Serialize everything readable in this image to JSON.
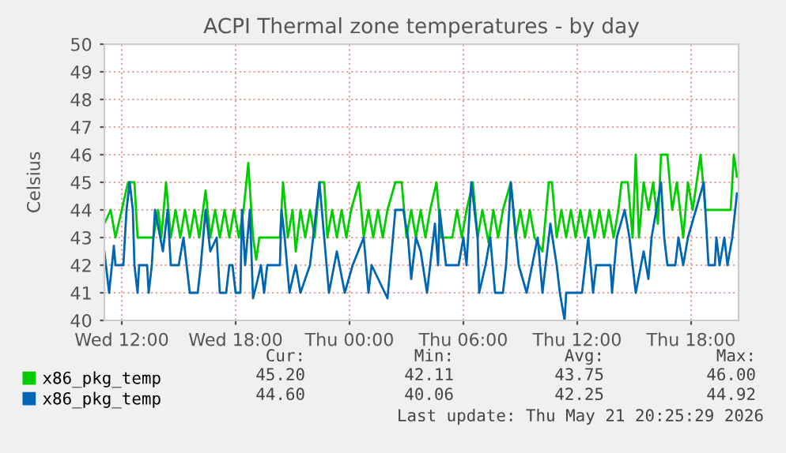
{
  "chart_data": {
    "type": "line",
    "title": "ACPI Thermal zone temperatures - by day",
    "ylabel": "Celsius",
    "xlim": [
      "2026-05-20T11:05",
      "2026-05-21T20:30"
    ],
    "xticks": [
      {
        "value": "2026-05-20T12:00",
        "label": "Wed 12:00"
      },
      {
        "value": "2026-05-20T18:00",
        "label": "Wed 18:00"
      },
      {
        "value": "2026-05-21T00:00",
        "label": "Thu 00:00"
      },
      {
        "value": "2026-05-21T06:00",
        "label": "Thu 06:00"
      },
      {
        "value": "2026-05-21T12:00",
        "label": "Thu 12:00"
      },
      {
        "value": "2026-05-21T18:00",
        "label": "Thu 18:00"
      }
    ],
    "ylim": [
      40,
      50
    ],
    "yticks": [
      40,
      41,
      42,
      43,
      44,
      45,
      46,
      47,
      48,
      49,
      50
    ],
    "grid": true,
    "legend": "bottom",
    "marker": "none",
    "line_style": "solid",
    "series": [
      {
        "name": "x86_pkg_temp",
        "color": "#00cc00",
        "x": [
          "2026-05-20T11:05",
          "2026-05-20T11:25",
          "2026-05-20T11:40",
          "2026-05-20T12:00",
          "2026-05-20T12:20",
          "2026-05-20T12:40",
          "2026-05-20T12:50",
          "2026-05-20T13:40",
          "2026-05-20T13:55",
          "2026-05-20T14:05",
          "2026-05-20T14:20",
          "2026-05-20T14:35",
          "2026-05-20T14:50",
          "2026-05-20T15:05",
          "2026-05-20T15:20",
          "2026-05-20T15:35",
          "2026-05-20T15:50",
          "2026-05-20T16:05",
          "2026-05-20T16:25",
          "2026-05-20T16:40",
          "2026-05-20T16:55",
          "2026-05-20T17:10",
          "2026-05-20T17:25",
          "2026-05-20T17:40",
          "2026-05-20T17:55",
          "2026-05-20T18:10",
          "2026-05-20T18:25",
          "2026-05-20T18:40",
          "2026-05-20T18:55",
          "2026-05-20T19:05",
          "2026-05-20T19:15",
          "2026-05-20T20:20",
          "2026-05-20T20:30",
          "2026-05-20T20:45",
          "2026-05-20T21:00",
          "2026-05-20T21:10",
          "2026-05-20T21:25",
          "2026-05-20T21:40",
          "2026-05-20T21:55",
          "2026-05-20T22:10",
          "2026-05-20T22:25",
          "2026-05-20T22:40",
          "2026-05-20T22:50",
          "2026-05-20T23:05",
          "2026-05-20T23:20",
          "2026-05-20T23:35",
          "2026-05-20T23:50",
          "2026-05-21T00:05",
          "2026-05-21T00:30",
          "2026-05-21T00:45",
          "2026-05-21T01:00",
          "2026-05-21T01:15",
          "2026-05-21T01:30",
          "2026-05-21T01:45",
          "2026-05-21T02:00",
          "2026-05-21T02:25",
          "2026-05-21T02:45",
          "2026-05-21T03:00",
          "2026-05-21T03:15",
          "2026-05-21T03:30",
          "2026-05-21T03:45",
          "2026-05-21T04:00",
          "2026-05-21T04:15",
          "2026-05-21T04:35",
          "2026-05-21T04:50",
          "2026-05-21T05:25",
          "2026-05-21T05:40",
          "2026-05-21T05:55",
          "2026-05-21T06:10",
          "2026-05-21T06:30",
          "2026-05-21T06:45",
          "2026-05-21T07:00",
          "2026-05-21T07:20",
          "2026-05-21T07:35",
          "2026-05-21T07:50",
          "2026-05-21T08:05",
          "2026-05-21T08:30",
          "2026-05-21T08:45",
          "2026-05-21T09:00",
          "2026-05-21T09:15",
          "2026-05-21T09:30",
          "2026-05-21T09:45",
          "2026-05-21T10:10",
          "2026-05-21T10:30",
          "2026-05-21T10:40",
          "2026-05-21T10:55",
          "2026-05-21T11:10",
          "2026-05-21T11:25",
          "2026-05-21T11:40",
          "2026-05-21T11:55",
          "2026-05-21T12:10",
          "2026-05-21T12:25",
          "2026-05-21T12:40",
          "2026-05-21T12:55",
          "2026-05-21T13:10",
          "2026-05-21T13:25",
          "2026-05-21T13:40",
          "2026-05-21T13:55",
          "2026-05-21T14:10",
          "2026-05-21T14:20",
          "2026-05-21T14:40",
          "2026-05-21T14:55",
          "2026-05-21T15:05",
          "2026-05-21T15:15",
          "2026-05-21T15:30",
          "2026-05-21T15:45",
          "2026-05-21T16:00",
          "2026-05-21T16:15",
          "2026-05-21T16:25",
          "2026-05-21T16:45",
          "2026-05-21T17:00",
          "2026-05-21T17:15",
          "2026-05-21T17:35",
          "2026-05-21T17:50",
          "2026-05-21T18:05",
          "2026-05-21T18:30",
          "2026-05-21T18:45",
          "2026-05-21T20:05",
          "2026-05-21T20:15",
          "2026-05-21T20:25"
        ],
        "values": [
          43.5,
          44,
          43,
          44,
          45,
          45,
          43,
          43,
          44,
          43,
          45,
          43,
          44,
          43,
          44,
          43,
          44,
          43,
          44.7,
          43,
          44,
          43,
          44,
          43,
          44,
          43,
          44,
          45.7,
          43,
          42.2,
          43,
          43,
          45,
          43,
          44,
          42.5,
          44,
          43,
          44,
          43,
          45,
          45,
          43,
          44,
          43,
          44,
          43,
          44,
          45,
          43,
          44,
          43,
          44,
          43,
          44,
          45,
          45,
          43,
          44,
          43,
          44,
          43,
          44,
          45,
          43,
          43,
          44,
          43,
          44,
          45,
          43,
          44,
          42.8,
          44,
          43,
          44,
          45,
          43,
          44,
          43,
          44,
          43,
          42.5,
          45,
          45,
          43,
          44,
          43,
          44,
          43,
          44,
          43,
          44,
          43,
          44,
          43,
          44,
          43,
          44,
          45,
          45,
          43,
          46,
          43,
          45,
          44,
          45,
          43.5,
          46,
          46,
          44,
          45,
          43,
          45,
          44,
          46,
          44,
          44,
          46,
          45.2
        ]
      },
      {
        "name": "x86_pkg_temp",
        "color": "#0066b3",
        "x": [
          "2026-05-20T11:05",
          "2026-05-20T11:20",
          "2026-05-20T11:35",
          "2026-05-20T11:40",
          "2026-05-20T12:05",
          "2026-05-20T12:15",
          "2026-05-20T12:25",
          "2026-05-20T12:35",
          "2026-05-20T12:40",
          "2026-05-20T12:50",
          "2026-05-20T12:55",
          "2026-05-20T13:20",
          "2026-05-20T13:25",
          "2026-05-20T13:35",
          "2026-05-20T13:45",
          "2026-05-20T14:10",
          "2026-05-20T14:25",
          "2026-05-20T14:35",
          "2026-05-20T15:00",
          "2026-05-20T15:15",
          "2026-05-20T15:25",
          "2026-05-20T15:35",
          "2026-05-20T16:00",
          "2026-05-20T16:10",
          "2026-05-20T16:25",
          "2026-05-20T16:40",
          "2026-05-20T17:00",
          "2026-05-20T17:10",
          "2026-05-20T17:30",
          "2026-05-20T17:40",
          "2026-05-20T17:50",
          "2026-05-20T18:00",
          "2026-05-20T18:15",
          "2026-05-20T18:20",
          "2026-05-20T18:30",
          "2026-05-20T18:45",
          "2026-05-20T18:55",
          "2026-05-20T19:10",
          "2026-05-20T19:20",
          "2026-05-20T19:30",
          "2026-05-20T19:40",
          "2026-05-20T20:20",
          "2026-05-20T20:25",
          "2026-05-20T20:35",
          "2026-05-20T20:50",
          "2026-05-20T21:10",
          "2026-05-20T21:25",
          "2026-05-20T21:55",
          "2026-05-20T22:25",
          "2026-05-20T22:40",
          "2026-05-20T22:55",
          "2026-05-20T23:20",
          "2026-05-20T23:45",
          "2026-05-21T00:10",
          "2026-05-21T00:45",
          "2026-05-21T01:00",
          "2026-05-21T01:10",
          "2026-05-21T02:00",
          "2026-05-21T02:25",
          "2026-05-21T02:50",
          "2026-05-21T03:05",
          "2026-05-21T03:15",
          "2026-05-21T03:30",
          "2026-05-21T03:45",
          "2026-05-21T04:05",
          "2026-05-21T04:30",
          "2026-05-21T04:40",
          "2026-05-21T04:45",
          "2026-05-21T04:55",
          "2026-05-21T05:05",
          "2026-05-21T05:45",
          "2026-05-21T06:00",
          "2026-05-21T06:10",
          "2026-05-21T06:25",
          "2026-05-21T06:45",
          "2026-05-21T06:50",
          "2026-05-21T07:10",
          "2026-05-21T07:25",
          "2026-05-21T07:40",
          "2026-05-21T08:05",
          "2026-05-21T08:15",
          "2026-05-21T08:30",
          "2026-05-21T08:55",
          "2026-05-21T09:20",
          "2026-05-21T09:55",
          "2026-05-21T10:10",
          "2026-05-21T10:35",
          "2026-05-21T10:55",
          "2026-05-21T11:05",
          "2026-05-21T11:20",
          "2026-05-21T11:25",
          "2026-05-21T12:15",
          "2026-05-21T12:35",
          "2026-05-21T12:50",
          "2026-05-21T13:00",
          "2026-05-21T13:45",
          "2026-05-21T13:50",
          "2026-05-21T14:05",
          "2026-05-21T14:30",
          "2026-05-21T14:45",
          "2026-05-21T15:05",
          "2026-05-21T15:30",
          "2026-05-21T15:45",
          "2026-05-21T15:55",
          "2026-05-21T16:10",
          "2026-05-21T16:25",
          "2026-05-21T16:35",
          "2026-05-21T16:45",
          "2026-05-21T17:10",
          "2026-05-21T17:20",
          "2026-05-21T17:35",
          "2026-05-21T17:50",
          "2026-05-21T18:15",
          "2026-05-21T18:40",
          "2026-05-21T18:50",
          "2026-05-21T18:55",
          "2026-05-21T19:15",
          "2026-05-21T19:20",
          "2026-05-21T19:30",
          "2026-05-21T19:45",
          "2026-05-21T19:55",
          "2026-05-21T20:10",
          "2026-05-21T20:25"
        ],
        "values": [
          42.5,
          41,
          42.7,
          42,
          42,
          44,
          45,
          44,
          42,
          41,
          42,
          42,
          41,
          42,
          44,
          42.5,
          44,
          42,
          42,
          43,
          42,
          41,
          41,
          42,
          44,
          42.5,
          43,
          41,
          41,
          42,
          42,
          41,
          41,
          44,
          42,
          44,
          40.8,
          41.5,
          42,
          41,
          42,
          42,
          44,
          43,
          41,
          42,
          41,
          42,
          45,
          43,
          41,
          42.5,
          41,
          42,
          43,
          41,
          42,
          40.8,
          44,
          44,
          43,
          41.5,
          43,
          42.5,
          41,
          43.5,
          42,
          44,
          43,
          42,
          42,
          43,
          42,
          45,
          43,
          41,
          42,
          43,
          41,
          41,
          42,
          45,
          42,
          41,
          43,
          41,
          43.5,
          42,
          41,
          40,
          41,
          41,
          43,
          41,
          42,
          42,
          41,
          43,
          44,
          43,
          41,
          42.5,
          41.5,
          43,
          44,
          45,
          43,
          42,
          42,
          43,
          42,
          43,
          44,
          45,
          43,
          42,
          42,
          43,
          42,
          43,
          42,
          43,
          44.6
        ]
      }
    ],
    "annotations": [
      "Cur:",
      "Min:",
      "Avg:",
      "Max:",
      "45.20",
      "42.11",
      "43.75",
      "46.00",
      "44.60",
      "40.06",
      "42.25",
      "44.92",
      "Last update: Thu May 21 20:25:29 2026"
    ]
  }
}
